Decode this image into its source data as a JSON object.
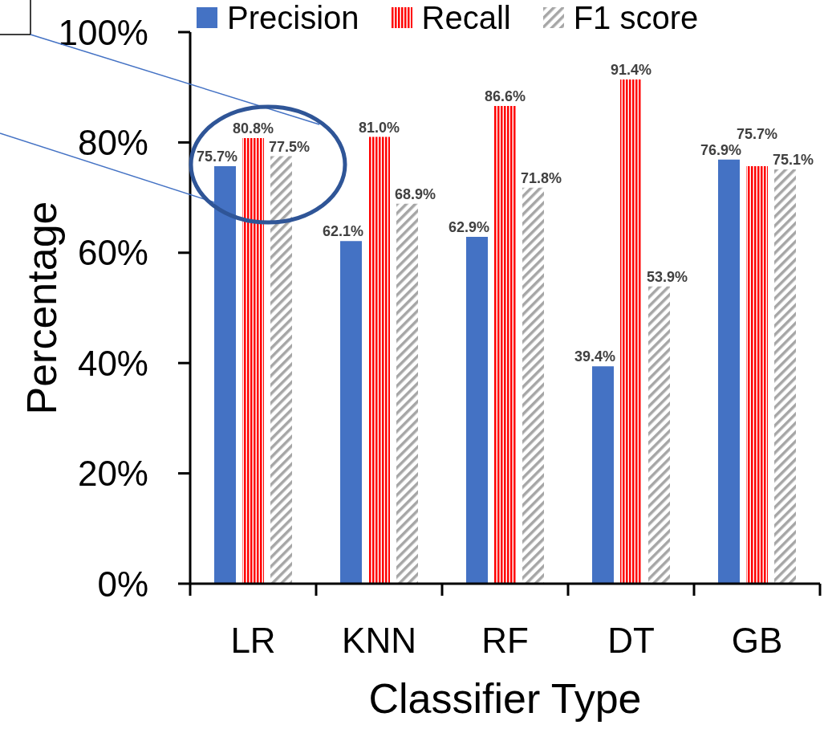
{
  "chart_data": {
    "type": "bar",
    "xlabel": "Classifier Type",
    "ylabel": "Percentage",
    "categories": [
      "LR",
      "KNN",
      "RF",
      "DT",
      "GB"
    ],
    "series": [
      {
        "name": "Precision",
        "color": "#4472c4",
        "values": [
          75.7,
          62.1,
          62.9,
          39.4,
          76.9
        ],
        "value_labels": [
          "75.7%",
          "62.1%",
          "62.9%",
          "39.4%",
          "76.9%"
        ]
      },
      {
        "name": "Recall",
        "color": "#ff0000",
        "values": [
          80.8,
          81.0,
          86.6,
          91.4,
          75.7
        ],
        "value_labels": [
          "80.8%",
          "81.0%",
          "86.6%",
          "91.4%",
          "75.7%"
        ]
      },
      {
        "name": "F1 score",
        "color": "#a6a6a6",
        "values": [
          77.5,
          68.9,
          71.8,
          53.9,
          75.1
        ],
        "value_labels": [
          "77.5%",
          "68.9%",
          "71.8%",
          "53.9%",
          "75.1%"
        ]
      }
    ],
    "ylim": [
      0,
      100
    ],
    "yticks": [
      {
        "value": 0,
        "label": "0%"
      },
      {
        "value": 20,
        "label": "20%"
      },
      {
        "value": 40,
        "label": "40%"
      },
      {
        "value": 60,
        "label": "60%"
      },
      {
        "value": 80,
        "label": "80%"
      },
      {
        "value": 100,
        "label": "100%"
      }
    ],
    "grid": false,
    "legend": "top"
  }
}
